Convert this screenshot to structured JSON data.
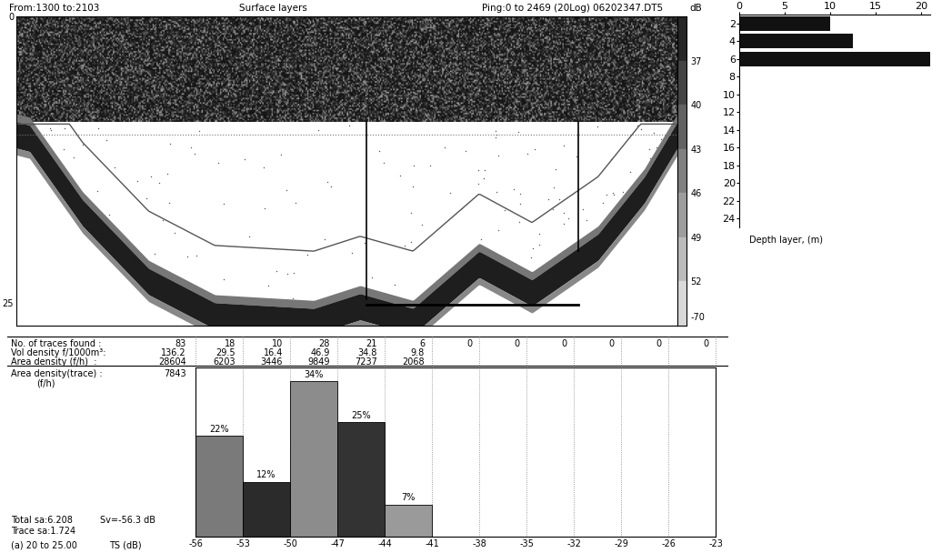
{
  "echogram": {
    "header_left": "From:1300 to:2103",
    "title": "Surface layers",
    "header_right": "Ping:0 to 2469 (20Log) 06202347.DT5",
    "scale_label": "dB",
    "scale_ticks": [
      37,
      40,
      43,
      46,
      49,
      52
    ],
    "scale_end": "-70",
    "depth_lim": [
      0,
      27
    ],
    "depth_ticks": [
      0,
      25
    ]
  },
  "table": {
    "rows": [
      {
        "label": "No. of traces found :",
        "total": 83,
        "cells": [
          18,
          10,
          28,
          21,
          6,
          0,
          0,
          0,
          0,
          0,
          0
        ]
      },
      {
        "label": "Vol density f/1000m³:",
        "total": 136.2,
        "cells": [
          29.5,
          16.4,
          46.9,
          34.8,
          9.8
        ]
      },
      {
        "label": "Area density (f/h)  :",
        "total": 28604,
        "cells": [
          6203,
          3446,
          9849,
          7237,
          2068
        ]
      }
    ]
  },
  "area_density_trace": {
    "label": "Area density(trace) :",
    "value": 7843,
    "unit": "(f/h)"
  },
  "chart_data": [
    {
      "type": "histogram",
      "subtitle": "(a) 20 to 25.00",
      "x_label": "TS (dB)",
      "bins": [
        -56,
        -53,
        -50,
        -47,
        -44,
        -41,
        -38,
        -35,
        -32,
        -29,
        -26,
        -23
      ],
      "values": [
        22,
        12,
        34,
        25,
        7,
        0,
        0,
        0,
        0,
        0,
        0
      ],
      "value_labels": [
        "22%",
        "12%",
        "34%",
        "25%",
        "7%",
        null,
        null,
        null,
        null,
        null,
        null
      ],
      "colors": [
        "#7a7a7a",
        "#2b2b2b",
        "#8c8c8c",
        "#333333",
        "#9a9a9a",
        "#7a7a7a",
        "#7a7a7a",
        "#7a7a7a",
        "#7a7a7a",
        "#7a7a7a",
        "#7a7a7a"
      ],
      "xlim": [
        -56,
        -23
      ],
      "xticks": [
        -56,
        -53,
        -50,
        -47,
        -44,
        -41,
        -38,
        -35,
        -32,
        -29,
        -26,
        -23
      ],
      "ylim": [
        0,
        37
      ],
      "yticks": [],
      "grid": true,
      "data_labels": true,
      "tick_labels": "x",
      "annotations": [
        "Total sa:6.208",
        "Sv=-56.3 dB",
        "Trace sa:1.724"
      ]
    },
    {
      "type": "bar",
      "orientation": "horizontal",
      "x_label": "Depth layer, (m)",
      "categories": [
        "2",
        "4",
        "6",
        "8",
        "10",
        "12",
        "14",
        "16",
        "18",
        "20",
        "22",
        "24"
      ],
      "values": [
        10,
        12.5,
        21,
        0,
        0,
        0,
        0,
        0,
        0,
        0,
        0,
        0
      ],
      "color": "#111111",
      "xlim": [
        0,
        21
      ],
      "xticks": [
        0,
        5,
        10,
        15,
        20
      ]
    }
  ]
}
